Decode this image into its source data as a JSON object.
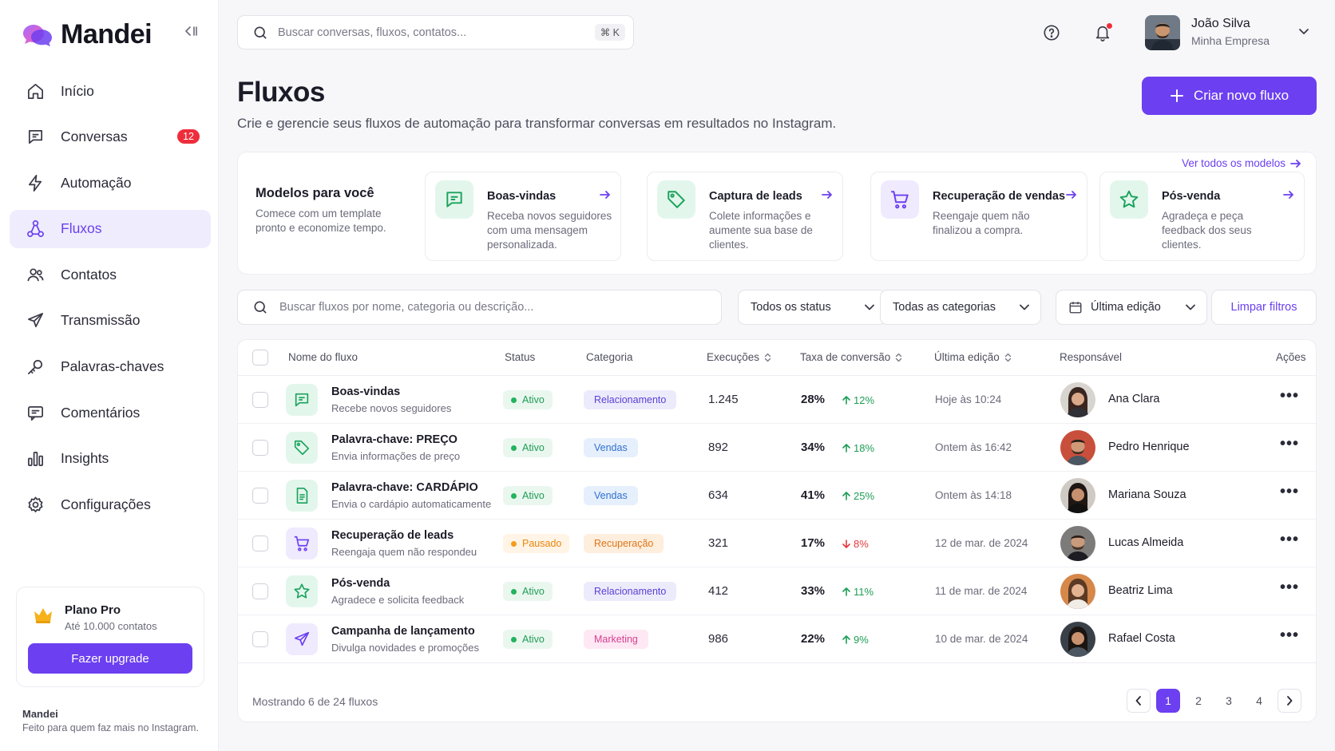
{
  "brand": {
    "name": "Mandei",
    "accent": "#6c3ff0"
  },
  "sidebar": {
    "items": [
      {
        "label": "Início",
        "icon": "home-icon"
      },
      {
        "label": "Conversas",
        "icon": "chat-icon",
        "badge": "12"
      },
      {
        "label": "Automação",
        "icon": "bolt-icon"
      },
      {
        "label": "Fluxos",
        "icon": "flow-icon",
        "active": true
      },
      {
        "label": "Contatos",
        "icon": "users-icon"
      },
      {
        "label": "Transmissão",
        "icon": "send-icon"
      },
      {
        "label": "Palavras-chaves",
        "icon": "key-icon"
      },
      {
        "label": "Comentários",
        "icon": "comment-icon"
      },
      {
        "label": "Insights",
        "icon": "chart-icon"
      },
      {
        "label": "Configurações",
        "icon": "gear-icon"
      }
    ],
    "plan": {
      "title": "Plano Pro",
      "subtitle": "Até 10.000 contatos",
      "button": "Fazer upgrade"
    },
    "footer": {
      "brand": "Mandei",
      "tagline": "Feito para quem faz mais no Instagram."
    }
  },
  "header": {
    "search_placeholder": "Buscar conversas, fluxos, contatos...",
    "shortcut": "⌘ K",
    "user": {
      "name": "João Silva",
      "company": "Minha Empresa"
    }
  },
  "page": {
    "title": "Fluxos",
    "subtitle": "Crie e gerencie seus fluxos de automação para transformar conversas em resultados no Instagram.",
    "create_button": "Criar novo fluxo"
  },
  "models": {
    "title": "Modelos para você",
    "subtitle": "Comece com um template pronto e economize tempo.",
    "see_all": "Ver todos os modelos",
    "cards": [
      {
        "title": "Boas-vindas",
        "desc": [
          "Receba novos seguidores",
          "com uma mensagem",
          "personalizada."
        ],
        "icon": "chat-icon"
      },
      {
        "title": "Captura de leads",
        "desc": [
          "Colete informações e",
          "aumente sua base de",
          "clientes."
        ],
        "icon": "tag-icon"
      },
      {
        "title": "Recuperação de vendas",
        "desc": [
          "Reengaje quem não",
          "finalizou a compra."
        ],
        "icon": "cart-icon"
      },
      {
        "title": "Pós-venda",
        "desc": [
          "Agradeça e peça",
          "feedback dos seus",
          "clientes."
        ],
        "icon": "star-icon"
      }
    ]
  },
  "filters": {
    "search_placeholder": "Buscar fluxos por nome, categoria ou descrição...",
    "status": "Todos os status",
    "category": "Todas as categorias",
    "sort": "Última edição",
    "clear": "Limpar filtros"
  },
  "table": {
    "columns": {
      "name": "Nome do fluxo",
      "status": "Status",
      "category": "Categoria",
      "executions": "Execuções",
      "rate": "Taxa de conversão",
      "edited": "Última edição",
      "owner": "Responsável",
      "actions": "Ações"
    },
    "rows": [
      {
        "name": "Boas-vindas",
        "desc": "Recebe novos seguidores",
        "status": "Ativo",
        "category": "Relacionamento",
        "executions": "1.245",
        "rate": "28%",
        "delta": "12%",
        "trend": "up",
        "edited": "Hoje às 10:24",
        "owner": "Ana Clara",
        "icon": "chat-icon"
      },
      {
        "name": "Palavra-chave: PREÇO",
        "desc": "Envia informações de preço",
        "status": "Ativo",
        "category": "Vendas",
        "executions": "892",
        "rate": "34%",
        "delta": "18%",
        "trend": "up",
        "edited": "Ontem às 16:42",
        "owner": "Pedro Henrique",
        "icon": "tag-icon"
      },
      {
        "name": "Palavra-chave: CARDÁPIO",
        "desc": "Envia o cardápio automaticamente",
        "status": "Ativo",
        "category": "Vendas",
        "executions": "634",
        "rate": "41%",
        "delta": "25%",
        "trend": "up",
        "edited": "Ontem às 14:18",
        "owner": "Mariana Souza",
        "icon": "document-icon"
      },
      {
        "name": "Recuperação de leads",
        "desc": "Reengaja quem não respondeu",
        "status": "Pausado",
        "category": "Recuperação",
        "executions": "321",
        "rate": "17%",
        "delta": "8%",
        "trend": "down",
        "edited": "12 de mar. de 2024",
        "owner": "Lucas Almeida",
        "icon": "cart-icon"
      },
      {
        "name": "Pós-venda",
        "desc": "Agradece e solicita feedback",
        "status": "Ativo",
        "category": "Relacionamento",
        "executions": "412",
        "rate": "33%",
        "delta": "11%",
        "trend": "up",
        "edited": "11 de mar. de 2024",
        "owner": "Beatriz Lima",
        "icon": "star-icon"
      },
      {
        "name": "Campanha de lançamento",
        "desc": "Divulga novidades e promoções",
        "status": "Ativo",
        "category": "Marketing",
        "executions": "986",
        "rate": "22%",
        "delta": "9%",
        "trend": "up",
        "edited": "10 de mar. de 2024",
        "owner": "Rafael Costa",
        "icon": "send-icon"
      }
    ],
    "footer": "Mostrando 6 de 24 fluxos",
    "pages": [
      "1",
      "2",
      "3",
      "4"
    ]
  }
}
